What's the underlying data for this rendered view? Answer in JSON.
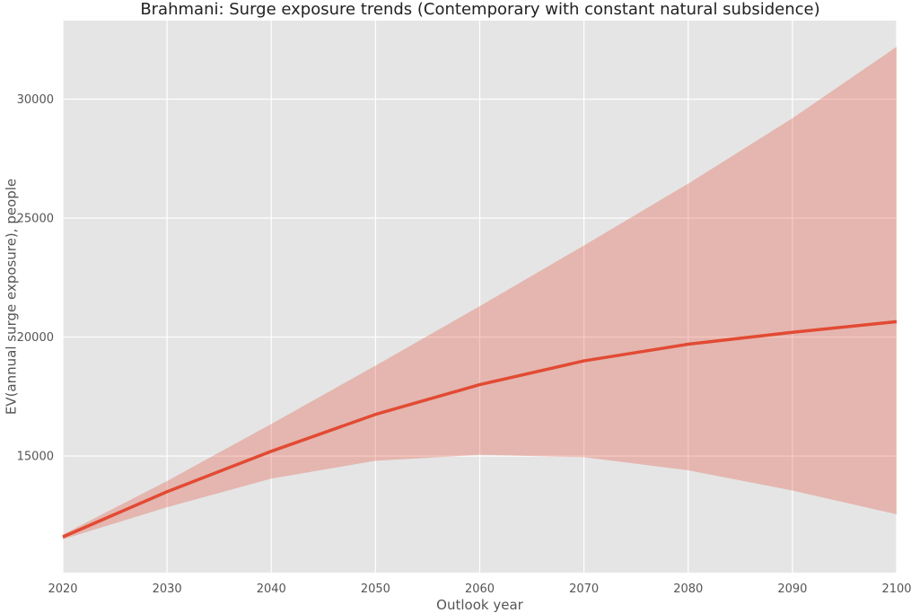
{
  "chart_data": {
    "type": "line",
    "title": "Brahmani: Surge exposure trends (Contemporary with constant natural subsidence)",
    "xlabel": "Outlook year",
    "ylabel": "EV(annual surge exposure), people",
    "xlim": [
      2020,
      2100
    ],
    "ylim": [
      10100,
      33300
    ],
    "x_ticks": [
      2020,
      2030,
      2040,
      2050,
      2060,
      2070,
      2080,
      2090,
      2100
    ],
    "y_ticks": [
      15000,
      20000,
      25000,
      30000
    ],
    "grid": true,
    "x": [
      2020,
      2030,
      2040,
      2050,
      2060,
      2070,
      2080,
      2090,
      2100
    ],
    "series": [
      {
        "values": [
          11600,
          13500,
          15200,
          16750,
          18000,
          19000,
          19700,
          20200,
          20650
        ],
        "band_lower": [
          11500,
          12850,
          14050,
          14800,
          15050,
          14950,
          14400,
          13550,
          12550
        ],
        "band_upper": [
          11700,
          13950,
          16350,
          18800,
          21300,
          23850,
          26450,
          29200,
          32200
        ]
      }
    ],
    "colors": {
      "line": "#e24a33",
      "band": "#e24a33",
      "plot_background": "#e5e5e5",
      "grid": "#ffffff"
    }
  }
}
